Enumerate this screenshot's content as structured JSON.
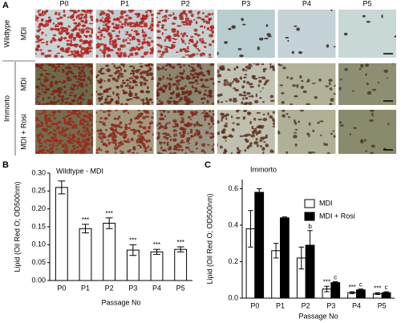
{
  "panel_labels": [
    "A",
    "B",
    "C"
  ],
  "micrographs": {
    "columns": [
      "P0",
      "P1",
      "P2",
      "P3",
      "P4",
      "P5"
    ],
    "groups": [
      {
        "name": "Wildtype",
        "rows": [
          "MDI"
        ]
      },
      {
        "name": "Immorto",
        "rows": [
          "MDI",
          "MDI + Rosi"
        ]
      }
    ]
  },
  "chart_data": [
    {
      "type": "bar",
      "title": "Wildtype - MDI",
      "y_label": "Lipid (Oil Red O; OD500nm)",
      "x_label": "Passage No",
      "categories": [
        "P0",
        "P1",
        "P2",
        "P3",
        "P4",
        "P5"
      ],
      "values": [
        0.26,
        0.145,
        0.16,
        0.085,
        0.08,
        0.087
      ],
      "errors": [
        0.018,
        0.012,
        0.015,
        0.015,
        0.007,
        0.007
      ],
      "significance": [
        null,
        "***",
        "***",
        "***",
        "***",
        "***"
      ],
      "color": "#ffffff",
      "ylim": [
        0,
        0.3
      ],
      "yticks": [
        {
          "value": 0,
          "label": "0.00"
        },
        0.05,
        {
          "value": 0.1,
          "label": "0.10"
        },
        0.15,
        {
          "value": 0.2,
          "label": "0.20"
        },
        0.25,
        {
          "value": 0.3,
          "label": "0.30"
        }
      ]
    },
    {
      "type": "bar",
      "title": "Immorto",
      "y_label": "Lipid (Oil Red O; OD500nm)",
      "x_label": "Passage No",
      "categories": [
        "P0",
        "P1",
        "P2",
        "P3",
        "P4",
        "P5"
      ],
      "series": [
        {
          "name": "MDI",
          "color": "#ffffff",
          "values": [
            0.38,
            0.26,
            0.22,
            0.05,
            0.03,
            0.025
          ],
          "errors": [
            0.1,
            0.04,
            0.06,
            0.015,
            0.005,
            0.005
          ],
          "significance": [
            null,
            null,
            null,
            "***",
            "***",
            "***"
          ]
        },
        {
          "name": "MDI + Rosi",
          "color": "#000000",
          "values": [
            0.58,
            0.44,
            0.29,
            0.085,
            0.045,
            0.03
          ],
          "errors": [
            0.02,
            0.005,
            0.08,
            0.005,
            0.005,
            0.005
          ],
          "significance": [
            null,
            null,
            "b",
            "c",
            "c",
            "c"
          ]
        }
      ],
      "legend": "right",
      "ylim": [
        0,
        0.65
      ],
      "yticks": [
        {
          "value": 0,
          "label": "0.0"
        },
        0.2,
        0.4,
        0.6
      ]
    }
  ]
}
